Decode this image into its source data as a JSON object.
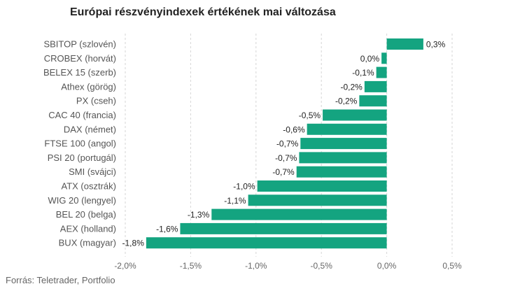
{
  "title": "Európai részvényindexek értékének mai változása",
  "source": "Forrás: Teletrader, Portfolio",
  "colors": {
    "bar": "#14a480",
    "grid": "#d6d6d6"
  },
  "chart_data": {
    "type": "bar",
    "orientation": "horizontal",
    "categories": [
      "SBITOP (szlovén)",
      "CROBEX (horvát)",
      "BELEX 15 (szerb)",
      "Athex (görög)",
      "PX (cseh)",
      "CAC 40 (francia)",
      "DAX (német)",
      "FTSE 100 (angol)",
      "PSI 20 (portugál)",
      "SMI (svájci)",
      "ATX (osztrák)",
      "WIG 20 (lengyel)",
      "BEL 20 (belga)",
      "AEX (holland)",
      "BUX (magyar)"
    ],
    "values": [
      0.28,
      -0.04,
      -0.08,
      -0.17,
      -0.21,
      -0.49,
      -0.61,
      -0.66,
      -0.67,
      -0.69,
      -0.99,
      -1.06,
      -1.34,
      -1.58,
      -1.84
    ],
    "data_labels": [
      "0,3%",
      "0,0%",
      "-0,1%",
      "-0,2%",
      "-0,2%",
      "-0,5%",
      "-0,6%",
      "-0,7%",
      "-0,7%",
      "-0,7%",
      "-1,0%",
      "-1,1%",
      "-1,3%",
      "-1,6%",
      "-1,8%"
    ],
    "x_ticks": [
      -2.0,
      -1.5,
      -1.0,
      -0.5,
      0.0,
      0.5
    ],
    "x_tick_labels": [
      "-2,0%",
      "-1,5%",
      "-1,0%",
      "-0,5%",
      "0,0%",
      "0,5%"
    ],
    "xlim": [
      -2.0,
      0.5
    ],
    "grid": true,
    "legend": "none"
  }
}
